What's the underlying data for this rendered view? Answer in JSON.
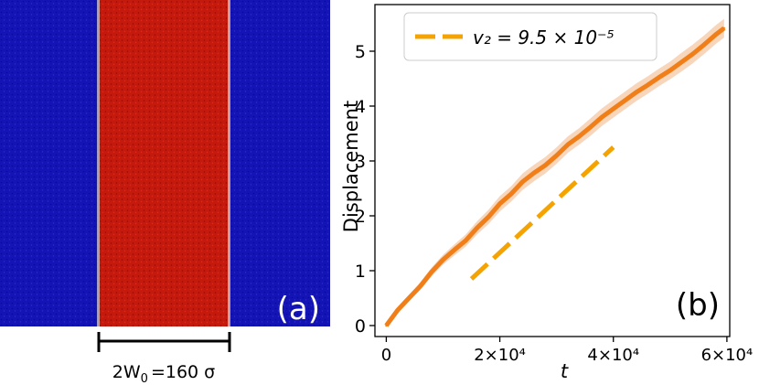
{
  "panel_a": {
    "label": "(a)",
    "width_annotation": "2W",
    "width_subscript": "0",
    "width_value": "=160 σ",
    "colors": {
      "outer": "#1212b0",
      "stripe": "#c81a10",
      "interface": "#cfcfcf"
    }
  },
  "chart_data": {
    "type": "line",
    "panel_label": "(b)",
    "xlabel": "t",
    "ylabel": "Displacement",
    "xlim": [
      -2000,
      60500
    ],
    "ylim": [
      -0.2,
      5.85
    ],
    "xticks": [
      {
        "value": 0,
        "label": "0"
      },
      {
        "value": 20000,
        "label": "2×10⁴"
      },
      {
        "value": 40000,
        "label": "4×10⁴"
      },
      {
        "value": 60000,
        "label": "6×10⁴"
      }
    ],
    "yticks": [
      0,
      1,
      2,
      3,
      4,
      5
    ],
    "legend": {
      "position": "top-left",
      "label": "v₂ = 9.5 × 10⁻⁵"
    },
    "colors": {
      "line": "#f07f19",
      "band": "#f6cfb0",
      "dashed": "#f5a300"
    },
    "series": [
      {
        "x": [
          0,
          2000,
          4000,
          6000,
          8000,
          10000,
          12000,
          14000,
          16000,
          18000,
          20000,
          22000,
          24000,
          26000,
          28000,
          30000,
          32000,
          34000,
          36000,
          38000,
          40000,
          42000,
          44000,
          46000,
          48000,
          50000,
          52000,
          54000,
          56000,
          58000,
          59500
        ],
        "y": [
          0,
          0.28,
          0.5,
          0.72,
          0.98,
          1.2,
          1.38,
          1.55,
          1.78,
          1.98,
          2.22,
          2.4,
          2.62,
          2.78,
          2.92,
          3.1,
          3.3,
          3.45,
          3.62,
          3.8,
          3.95,
          4.1,
          4.25,
          4.38,
          4.52,
          4.65,
          4.8,
          4.95,
          5.12,
          5.3,
          5.42
        ],
        "band_halfwidth": [
          0,
          0.03,
          0.05,
          0.07,
          0.08,
          0.09,
          0.1,
          0.11,
          0.12,
          0.13,
          0.14,
          0.14,
          0.15,
          0.15,
          0.15,
          0.15,
          0.15,
          0.15,
          0.16,
          0.16,
          0.16,
          0.16,
          0.16,
          0.16,
          0.16,
          0.16,
          0.17,
          0.17,
          0.17,
          0.17,
          0.17
        ]
      }
    ],
    "reference_line": {
      "style": "dashed",
      "x": [
        15000,
        40000
      ],
      "y": [
        0.85,
        3.25
      ]
    }
  }
}
